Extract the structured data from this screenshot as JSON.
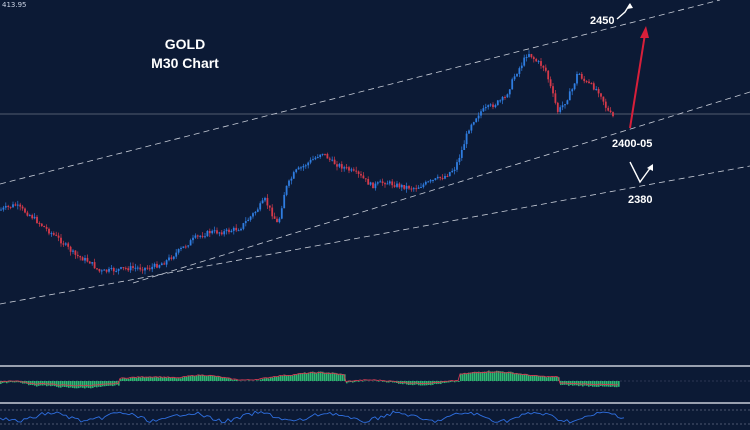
{
  "chart_data": {
    "type": "candlestick",
    "title_line1": "GOLD",
    "title_line2": "M30 Chart",
    "price_label": "413.95",
    "annotations": [
      {
        "label": "2450"
      },
      {
        "label": "2400-05"
      },
      {
        "label": "2380"
      }
    ],
    "colors": {
      "background": "#0c1a35",
      "bull": "#2f7de1",
      "bear": "#d63a4a",
      "trendline": "#c8cdd8",
      "arrow_up": "#d81f3a",
      "arrow_white": "#ffffff",
      "macd_hist": "#2eb872",
      "macd_signal": "#cf3b53",
      "osc_line": "#2f6fe0"
    },
    "panels": [
      "price",
      "macd",
      "oscillator"
    ]
  }
}
